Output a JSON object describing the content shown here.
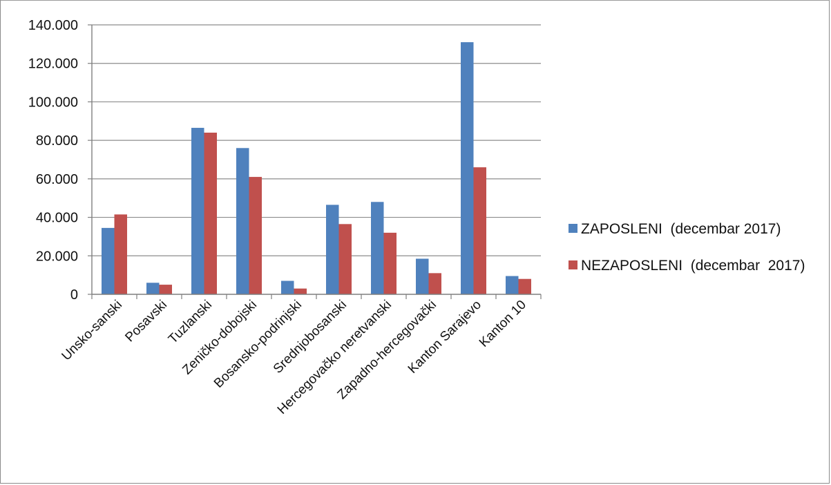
{
  "chart_data": {
    "type": "bar",
    "categories": [
      "Unsko-sanski",
      "Posavski",
      "Tuzlanski",
      "Zeničko-dobojski",
      "Bosansko-podrinjski",
      "Srednjobosanski",
      "Hercegovačko neretvanski",
      "Zapadno-hercegovački",
      "Kanton Sarajevo",
      "Kanton 10"
    ],
    "series": [
      {
        "name": "ZAPOSLENI  (decembar 2017)",
        "color": "#4f81bd",
        "values": [
          34500,
          6000,
          86500,
          76000,
          7000,
          46500,
          48000,
          18500,
          131000,
          9500
        ]
      },
      {
        "name": "NEZAPOSLENI  (decembar  2017)",
        "color": "#c0504d",
        "values": [
          41500,
          5000,
          84000,
          61000,
          3000,
          36500,
          32000,
          11000,
          66000,
          8000
        ]
      }
    ],
    "yticks": [
      "0",
      "20.000",
      "40.000",
      "60.000",
      "80.000",
      "100.000",
      "120.000",
      "140.000"
    ],
    "ylim": [
      0,
      140000
    ],
    "grid": true,
    "legend_position": "right"
  }
}
